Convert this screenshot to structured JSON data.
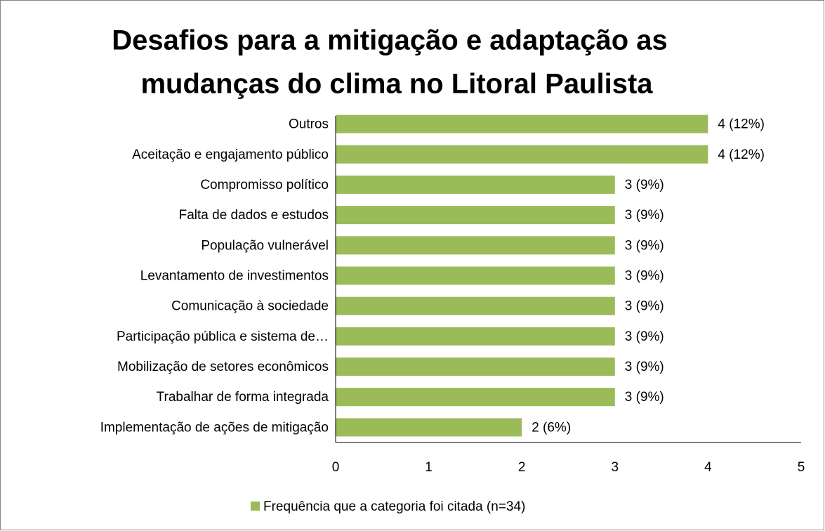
{
  "chart_data": {
    "type": "bar",
    "orientation": "horizontal",
    "title": [
      "Desafios para a mitigação e adaptação as",
      "mudanças do clima no Litoral Paulista"
    ],
    "categories": [
      "Outros",
      "Aceitação e engajamento público",
      "Compromisso político",
      "Falta de dados e estudos",
      "População vulnerável",
      "Levantamento de investimentos",
      "Comunicação à sociedade",
      "Participação pública e sistema de…",
      "Mobilização de setores econômicos",
      "Trabalhar de forma integrada",
      "Implementação de ações de mitigação"
    ],
    "series": [
      {
        "name": "Frequência que a categoria foi citada (n=34)",
        "color": "#9bbb59",
        "values": [
          4,
          4,
          3,
          3,
          3,
          3,
          3,
          3,
          3,
          3,
          2
        ],
        "value_labels": [
          "4 (12%)",
          "4 (12%)",
          "3 (9%)",
          "3 (9%)",
          "3 (9%)",
          "3 (9%)",
          "3 (9%)",
          "3 (9%)",
          "3 (9%)",
          "3 (9%)",
          "2 (6%)"
        ]
      }
    ],
    "xlim": [
      0,
      5
    ],
    "xticks": [
      0,
      1,
      2,
      3,
      4,
      5
    ],
    "legend": "bottom"
  }
}
